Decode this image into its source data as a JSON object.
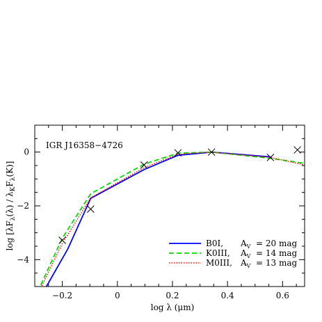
{
  "chart_data": {
    "type": "line",
    "annotation": "IGR J16358−4726",
    "xlabel": "log λ (μm)",
    "ylabel": "log [λFλ(λ) / λKFλ(K)]",
    "xlim": [
      -0.3,
      0.68
    ],
    "ylim": [
      -5,
      1
    ],
    "xticks": [
      -0.2,
      0,
      0.2,
      0.4,
      0.6
    ],
    "xtick_labels": [
      "−0.2",
      "0",
      "0.2",
      "0.4",
      "0.6"
    ],
    "yticks": [
      -4,
      -2,
      0
    ],
    "ytick_labels": [
      "−4",
      "−2",
      "0"
    ],
    "legend_position": "bottom-right",
    "series": [
      {
        "name": "B0I,   AV = 20 mag",
        "legend_prefix": "B0I,",
        "legend_suffix": " = 20 mag",
        "color": "#0000ff",
        "style": "solid",
        "x": [
          -0.28,
          -0.18,
          -0.097,
          0.097,
          0.22,
          0.342,
          0.556
        ],
        "y": [
          -5.4,
          -3.6,
          -1.72,
          -0.65,
          -0.12,
          0.0,
          -0.18
        ]
      },
      {
        "name": "K0III, AV = 14 mag",
        "legend_prefix": "K0III,",
        "legend_suffix": " = 14 mag",
        "color": "#00dd00",
        "style": "dashed",
        "x": [
          -0.29,
          -0.2,
          -0.097,
          0.097,
          0.22,
          0.342,
          0.556,
          0.68
        ],
        "y": [
          -5.2,
          -3.2,
          -1.55,
          -0.45,
          -0.04,
          0.0,
          -0.23,
          -0.42
        ]
      },
      {
        "name": "M0III, AV = 13 mag",
        "legend_prefix": "M0III,",
        "legend_suffix": " = 13 mag",
        "color": "#ff0000",
        "style": "dotted",
        "x": [
          -0.29,
          -0.2,
          -0.097,
          0.097,
          0.22,
          0.342,
          0.556,
          0.68
        ],
        "y": [
          -5.3,
          -3.4,
          -1.7,
          -0.58,
          -0.08,
          0.0,
          -0.2,
          -0.48
        ]
      }
    ],
    "observed": {
      "marker": "x",
      "color": "#000000",
      "x": [
        -0.2,
        -0.097,
        0.097,
        0.22,
        0.342,
        0.556,
        0.654
      ],
      "y": [
        -3.28,
        -2.12,
        -0.48,
        -0.03,
        0.0,
        -0.2,
        0.08
      ]
    }
  }
}
